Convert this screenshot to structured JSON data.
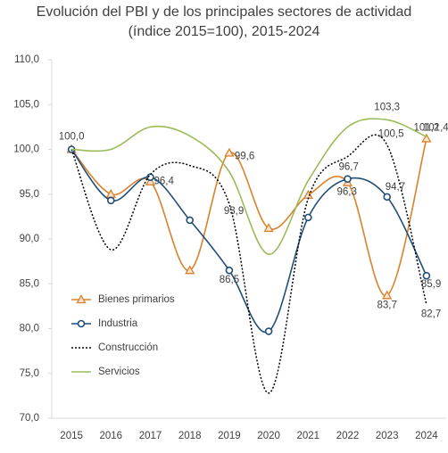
{
  "chart_data": {
    "type": "line",
    "title": "Evolución del PBI y de los principales sectores de actividad",
    "subtitle": "(índice 2015=100), 2015-2024",
    "categories": [
      "2015",
      "2016",
      "2017",
      "2018",
      "2019",
      "2020",
      "2021",
      "2022",
      "2023",
      "2024"
    ],
    "ylim": [
      70,
      110
    ],
    "yticks": [
      {
        "value": 70,
        "label": "70,0"
      },
      {
        "value": 75,
        "label": "75,0"
      },
      {
        "value": 80,
        "label": "80,0"
      },
      {
        "value": 85,
        "label": "85,0"
      },
      {
        "value": 90,
        "label": "90,0"
      },
      {
        "value": 95,
        "label": "95,0"
      },
      {
        "value": 100,
        "label": "100,0"
      },
      {
        "value": 105,
        "label": "105,0"
      },
      {
        "value": 110,
        "label": "110,0"
      }
    ],
    "grid": false,
    "legend": "lower-left",
    "series": [
      {
        "name": "Bienes primarios",
        "color": "#d9822b",
        "marker": "triangle",
        "dash": false,
        "values": [
          100.0,
          95.0,
          96.4,
          86.5,
          99.6,
          91.2,
          94.9,
          96.3,
          83.7,
          101.2
        ],
        "value_labels": [
          "100,0",
          null,
          "96,4",
          null,
          "99,6",
          null,
          null,
          "96,3",
          "83,7",
          "101,2"
        ]
      },
      {
        "name": "Industria",
        "color": "#1f4e79",
        "marker": "circle",
        "dash": false,
        "values": [
          100.0,
          94.3,
          96.9,
          92.1,
          86.5,
          79.7,
          92.4,
          96.7,
          94.7,
          85.9
        ],
        "value_labels": [
          null,
          null,
          null,
          null,
          "86,5",
          null,
          null,
          "96,7",
          "94,7",
          "85,9"
        ]
      },
      {
        "name": "Construcción",
        "color": "#000000",
        "marker": "none",
        "dash": true,
        "values": [
          100.0,
          88.8,
          97.2,
          98.2,
          93.9,
          72.8,
          94.5,
          99.2,
          100.5,
          82.7
        ],
        "value_labels": [
          null,
          null,
          null,
          null,
          "93,9",
          null,
          null,
          null,
          "100,5",
          "82,7"
        ]
      },
      {
        "name": "Servicios",
        "color": "#9bbb59",
        "marker": "none",
        "dash": false,
        "values": [
          100.0,
          100.0,
          102.5,
          101.5,
          97.5,
          88.3,
          96.5,
          102.5,
          103.3,
          101.4
        ],
        "value_labels": [
          null,
          null,
          null,
          null,
          null,
          null,
          null,
          null,
          "103,3",
          "101,4"
        ]
      }
    ]
  }
}
